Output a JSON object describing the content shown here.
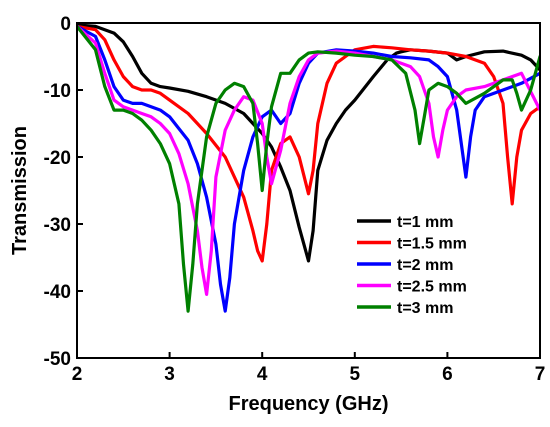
{
  "chart_data": {
    "type": "line",
    "title": "",
    "xlabel": "Frequency (GHz)",
    "ylabel": "Transmission",
    "xlim": [
      2,
      7
    ],
    "ylim": [
      -50,
      0
    ],
    "xticks": [
      "2",
      "3",
      "4",
      "5",
      "6",
      "7"
    ],
    "yticks": [
      "0",
      "-10",
      "-20",
      "-30",
      "-40",
      "-50"
    ],
    "grid": false,
    "legend_position": "lower-right",
    "series": [
      {
        "name": "t=1 mm",
        "color": "#000000",
        "x": [
          2.0,
          2.2,
          2.4,
          2.5,
          2.6,
          2.7,
          2.8,
          2.9,
          3.0,
          3.2,
          3.4,
          3.6,
          3.8,
          3.9,
          4.0,
          4.1,
          4.2,
          4.3,
          4.4,
          4.5,
          4.55,
          4.6,
          4.7,
          4.8,
          4.9,
          5.0,
          5.2,
          5.35,
          5.45,
          5.5,
          5.6,
          5.8,
          6.0,
          6.1,
          6.2,
          6.4,
          6.6,
          6.8,
          6.9,
          7.0
        ],
        "y": [
          -0.3,
          -0.5,
          -1.5,
          -2.8,
          -5.0,
          -7.5,
          -9.0,
          -9.5,
          -9.7,
          -10.2,
          -11.0,
          -12.0,
          -13.5,
          -15.0,
          -16.5,
          -18.5,
          -21.5,
          -25.0,
          -30.5,
          -35.5,
          -31.0,
          -22.0,
          -17.5,
          -15.0,
          -13.0,
          -11.5,
          -8.0,
          -5.5,
          -4.5,
          -4.3,
          -4.0,
          -4.2,
          -4.5,
          -5.5,
          -5.0,
          -4.3,
          -4.2,
          -4.8,
          -5.5,
          -7.0
        ]
      },
      {
        "name": "t=1.5 mm",
        "color": "#ff0000",
        "x": [
          2.0,
          2.2,
          2.3,
          2.4,
          2.5,
          2.6,
          2.7,
          2.8,
          2.9,
          3.0,
          3.2,
          3.4,
          3.6,
          3.8,
          3.9,
          3.95,
          4.0,
          4.05,
          4.1,
          4.2,
          4.3,
          4.4,
          4.5,
          4.55,
          4.6,
          4.7,
          4.8,
          4.9,
          5.0,
          5.2,
          5.4,
          5.6,
          5.8,
          6.0,
          6.2,
          6.4,
          6.5,
          6.6,
          6.65,
          6.7,
          6.75,
          6.8,
          6.9,
          7.0
        ],
        "y": [
          -0.5,
          -1.0,
          -2.5,
          -5.5,
          -8.0,
          -9.5,
          -10.0,
          -10.0,
          -10.5,
          -11.5,
          -13.5,
          -16.5,
          -20.0,
          -26.0,
          -31.0,
          -34.0,
          -35.5,
          -30.0,
          -22.0,
          -18.0,
          -17.0,
          -20.0,
          -25.5,
          -22.0,
          -15.0,
          -9.0,
          -6.0,
          -5.0,
          -4.0,
          -3.5,
          -3.7,
          -4.0,
          -4.2,
          -4.5,
          -5.0,
          -6.0,
          -8.0,
          -12.0,
          -20.0,
          -27.0,
          -20.0,
          -16.0,
          -13.5,
          -12.5
        ]
      },
      {
        "name": "t=2 mm",
        "color": "#0000ff",
        "x": [
          2.0,
          2.2,
          2.3,
          2.4,
          2.5,
          2.6,
          2.7,
          2.8,
          2.9,
          3.0,
          3.2,
          3.3,
          3.4,
          3.5,
          3.55,
          3.6,
          3.65,
          3.7,
          3.8,
          3.9,
          4.0,
          4.1,
          4.2,
          4.3,
          4.4,
          4.5,
          4.6,
          4.8,
          5.0,
          5.2,
          5.4,
          5.6,
          5.8,
          5.9,
          6.0,
          6.1,
          6.15,
          6.2,
          6.25,
          6.3,
          6.4,
          6.6,
          6.8,
          7.0
        ],
        "y": [
          -0.5,
          -2.0,
          -5.5,
          -9.5,
          -11.5,
          -12.0,
          -12.0,
          -12.5,
          -13.0,
          -14.0,
          -17.5,
          -21.0,
          -26.0,
          -33.0,
          -39.0,
          -43.0,
          -38.0,
          -30.0,
          -22.0,
          -17.0,
          -14.0,
          -13.0,
          -15.0,
          -13.5,
          -9.0,
          -6.0,
          -4.5,
          -4.0,
          -4.2,
          -4.5,
          -5.0,
          -5.2,
          -5.5,
          -6.5,
          -8.0,
          -13.0,
          -18.0,
          -23.0,
          -17.0,
          -13.0,
          -11.0,
          -10.0,
          -9.0,
          -7.5
        ]
      },
      {
        "name": "t=2.5 mm",
        "color": "#ff00ff",
        "x": [
          2.0,
          2.2,
          2.3,
          2.4,
          2.5,
          2.6,
          2.7,
          2.8,
          2.9,
          3.0,
          3.1,
          3.2,
          3.3,
          3.35,
          3.4,
          3.45,
          3.5,
          3.6,
          3.7,
          3.8,
          3.9,
          4.0,
          4.05,
          4.1,
          4.2,
          4.3,
          4.4,
          4.5,
          4.6,
          4.8,
          5.0,
          5.2,
          5.4,
          5.6,
          5.7,
          5.8,
          5.85,
          5.9,
          5.95,
          6.0,
          6.1,
          6.2,
          6.4,
          6.6,
          6.8,
          7.0
        ],
        "y": [
          -0.5,
          -3.0,
          -7.5,
          -11.5,
          -12.5,
          -13.0,
          -13.5,
          -14.0,
          -15.0,
          -16.5,
          -19.5,
          -24.0,
          -31.0,
          -36.5,
          -40.5,
          -34.0,
          -23.0,
          -16.0,
          -13.0,
          -11.0,
          -11.5,
          -15.0,
          -20.0,
          -24.0,
          -19.0,
          -12.0,
          -8.0,
          -5.5,
          -4.5,
          -4.2,
          -4.5,
          -5.0,
          -5.5,
          -6.5,
          -8.0,
          -12.0,
          -17.0,
          -20.0,
          -16.0,
          -13.0,
          -11.0,
          -10.0,
          -9.5,
          -8.5,
          -7.5,
          -13.0
        ]
      },
      {
        "name": "t=3 mm",
        "color": "#008000",
        "x": [
          2.0,
          2.2,
          2.3,
          2.4,
          2.5,
          2.6,
          2.7,
          2.8,
          2.9,
          3.0,
          3.1,
          3.15,
          3.2,
          3.25,
          3.3,
          3.4,
          3.5,
          3.6,
          3.7,
          3.8,
          3.9,
          3.95,
          4.0,
          4.05,
          4.1,
          4.2,
          4.3,
          4.4,
          4.5,
          4.6,
          4.8,
          5.0,
          5.2,
          5.4,
          5.55,
          5.65,
          5.7,
          5.75,
          5.8,
          5.9,
          6.0,
          6.1,
          6.2,
          6.4,
          6.6,
          6.7,
          6.75,
          6.8,
          6.9,
          7.0
        ],
        "y": [
          -0.5,
          -4.0,
          -9.5,
          -13.0,
          -13.0,
          -13.5,
          -14.5,
          -16.0,
          -18.0,
          -21.0,
          -27.0,
          -36.0,
          -43.0,
          -36.0,
          -27.0,
          -17.0,
          -12.0,
          -10.0,
          -9.0,
          -9.5,
          -12.0,
          -18.0,
          -25.0,
          -18.0,
          -12.5,
          -7.5,
          -7.5,
          -5.5,
          -4.5,
          -4.3,
          -4.5,
          -4.8,
          -5.0,
          -5.5,
          -7.5,
          -13.0,
          -18.0,
          -14.0,
          -10.0,
          -9.0,
          -9.5,
          -10.5,
          -12.0,
          -10.5,
          -8.5,
          -8.5,
          -10.5,
          -13.0,
          -10.0,
          -5.0
        ]
      }
    ]
  }
}
